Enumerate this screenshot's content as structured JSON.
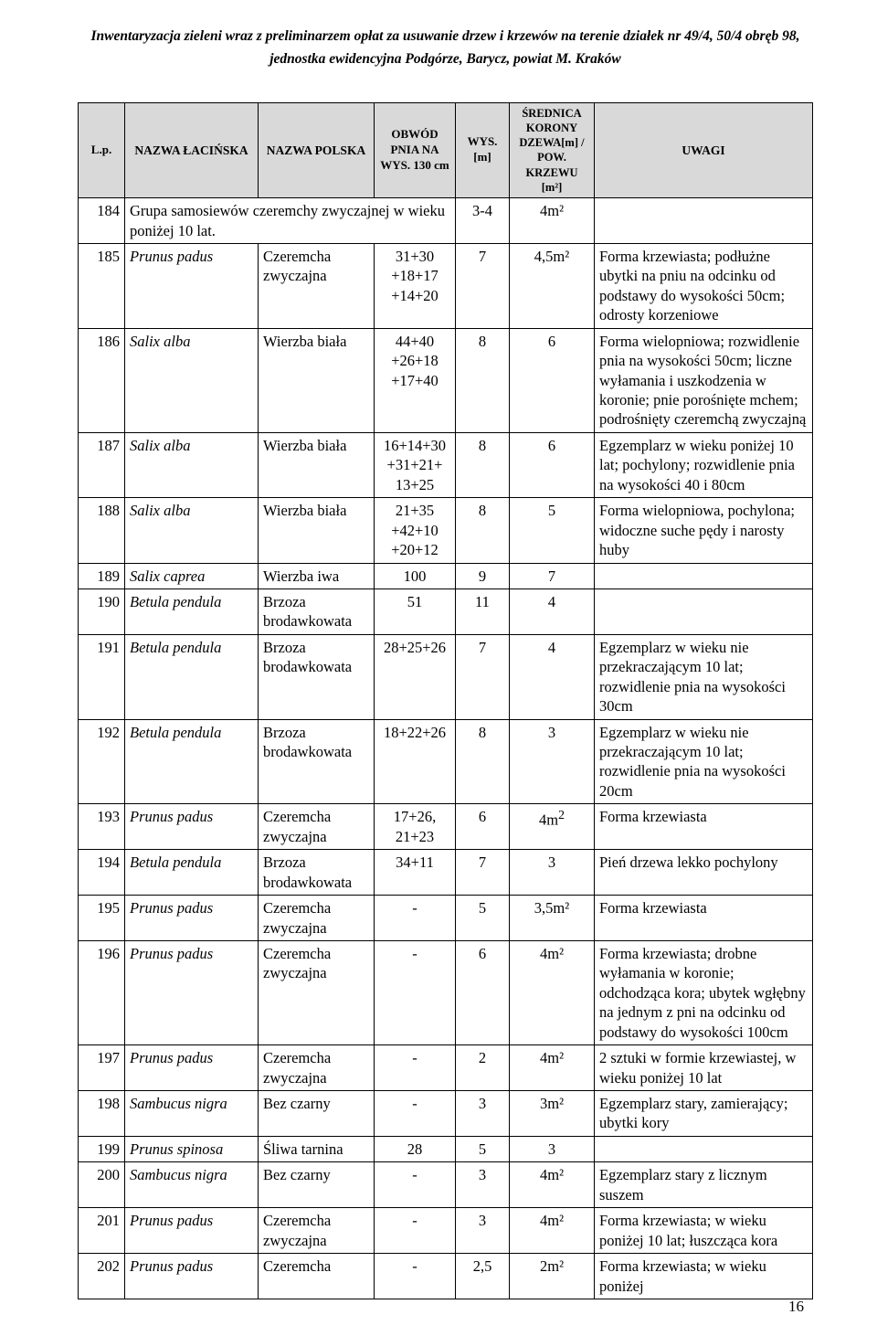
{
  "header": {
    "line1": "Inwentaryzacja zieleni  wraz z preliminarzem opłat za usuwanie drzew i krzewów na terenie działek nr 49/4, 50/4 obręb 98,",
    "line2": "jednostka ewidencyjna Podgórze, Barycz, powiat M. Kraków"
  },
  "columns": {
    "lp": "L.p.",
    "latin": "NAZWA ŁACIŃSKA",
    "polska": "NAZWA POLSKA",
    "obwod": "OBWÓD PNIA NA WYS. 130 cm",
    "wys": "WYS. [m]",
    "sred": "ŚREDNICA KORONY DZEWA[m] / POW. KRZEWU [m²]",
    "uwagi": "UWAGI"
  },
  "rows": [
    {
      "lp": "184",
      "latin_colspan": "Grupa samosiewów czeremchy zwyczajnej w wieku poniżej 10 lat.",
      "obwod": "",
      "wys": "3-4",
      "sred": "4m²",
      "uwagi": ""
    },
    {
      "lp": "185",
      "latin": "Prunus padus",
      "polska": "Czeremcha zwyczajna",
      "obwod": "31+30 +18+17 +14+20",
      "wys": "7",
      "sred": "4,5m²",
      "uwagi": "Forma krzewiasta; podłużne ubytki na pniu na odcinku od podstawy do wysokości 50cm; odrosty korzeniowe"
    },
    {
      "lp": "186",
      "latin": "Salix alba",
      "polska": "Wierzba biała",
      "obwod": "44+40 +26+18 +17+40",
      "wys": "8",
      "sred": "6",
      "uwagi": "Forma wielopniowa; rozwidlenie pnia na wysokości 50cm; liczne wyłamania i uszkodzenia w koronie; pnie porośnięte mchem; podrośnięty czeremchą zwyczajną"
    },
    {
      "lp": "187",
      "latin": "Salix alba",
      "polska": "Wierzba biała",
      "obwod": "16+14+30 +31+21+ 13+25",
      "wys": "8",
      "sred": "6",
      "uwagi": "Egzemplarz w wieku poniżej 10 lat; pochylony; rozwidlenie pnia na wysokości 40 i 80cm"
    },
    {
      "lp": "188",
      "latin": "Salix alba",
      "polska": "Wierzba biała",
      "obwod": "21+35 +42+10 +20+12",
      "wys": "8",
      "sred": "5",
      "uwagi": "Forma wielopniowa, pochylona; widoczne suche pędy i narosty huby"
    },
    {
      "lp": "189",
      "latin": "Salix caprea",
      "polska": "Wierzba iwa",
      "obwod": "100",
      "wys": "9",
      "sred": "7",
      "uwagi": ""
    },
    {
      "lp": "190",
      "latin": "Betula pendula",
      "polska": "Brzoza brodawkowata",
      "obwod": "51",
      "wys": "11",
      "sred": "4",
      "uwagi": ""
    },
    {
      "lp": "191",
      "latin": "Betula pendula",
      "polska": "Brzoza brodawkowata",
      "obwod": "28+25+26",
      "wys": "7",
      "sred": "4",
      "uwagi": "Egzemplarz w wieku nie przekraczającym 10 lat; rozwidlenie pnia na wysokości 30cm"
    },
    {
      "lp": "192",
      "latin": "Betula pendula",
      "polska": "Brzoza brodawkowata",
      "obwod": "18+22+26",
      "wys": "8",
      "sred": "3",
      "uwagi": "Egzemplarz w wieku nie przekraczającym 10 lat; rozwidlenie pnia na wysokości 20cm"
    },
    {
      "lp": "193",
      "latin": "Prunus padus",
      "polska": "Czeremcha zwyczajna",
      "obwod": "17+26, 21+23",
      "wys": "6",
      "sred": "4m²",
      "sred_sup": "2",
      "uwagi": "Forma krzewiasta"
    },
    {
      "lp": "194",
      "latin": "Betula pendula",
      "polska": "Brzoza brodawkowata",
      "obwod": "34+11",
      "wys": "7",
      "sred": "3",
      "uwagi": "Pień drzewa lekko pochylony"
    },
    {
      "lp": "195",
      "latin": "Prunus padus",
      "polska": "Czeremcha zwyczajna",
      "obwod": "-",
      "wys": "5",
      "sred": "3,5m²",
      "uwagi": "Forma krzewiasta"
    },
    {
      "lp": "196",
      "latin": "Prunus padus",
      "polska": "Czeremcha zwyczajna",
      "obwod": "-",
      "wys": "6",
      "sred": "4m²",
      "uwagi": "Forma krzewiasta; drobne wyłamania w koronie; odchodząca kora; ubytek wgłębny na jednym z pni na odcinku od podstawy do wysokości 100cm"
    },
    {
      "lp": "197",
      "latin": "Prunus padus",
      "polska": "Czeremcha zwyczajna",
      "obwod": "-",
      "wys": "2",
      "sred": "4m²",
      "uwagi": "2 sztuki w formie krzewiastej, w wieku poniżej 10 lat"
    },
    {
      "lp": "198",
      "latin": "Sambucus nigra",
      "polska": "Bez czarny",
      "obwod": "-",
      "wys": "3",
      "sred": "3m²",
      "uwagi": "Egzemplarz stary, zamierający; ubytki kory"
    },
    {
      "lp": "199",
      "latin": "Prunus spinosa",
      "polska": "Śliwa tarnina",
      "obwod": "28",
      "wys": "5",
      "sred": "3",
      "uwagi": ""
    },
    {
      "lp": "200",
      "latin": "Sambucus nigra",
      "polska": "Bez czarny",
      "obwod": "-",
      "wys": "3",
      "sred": "4m²",
      "uwagi": "Egzemplarz stary z licznym suszem"
    },
    {
      "lp": "201",
      "latin": "Prunus padus",
      "polska": "Czeremcha zwyczajna",
      "obwod": "-",
      "wys": "3",
      "sred": "4m²",
      "uwagi": "Forma krzewiasta; w wieku poniżej 10 lat; łuszcząca kora"
    },
    {
      "lp": "202",
      "latin": "Prunus padus",
      "polska": "Czeremcha",
      "obwod": "-",
      "wys": "2,5",
      "sred": "2m²",
      "uwagi": "Forma krzewiasta; w wieku poniżej"
    }
  ],
  "pageNum": "16",
  "style": {
    "header_bg": "#d9d9d9",
    "border_color": "#000000",
    "page_bg": "#ffffff",
    "font_family": "Times New Roman",
    "body_fontsize": 16.5,
    "header_fontsize": 15.5
  }
}
